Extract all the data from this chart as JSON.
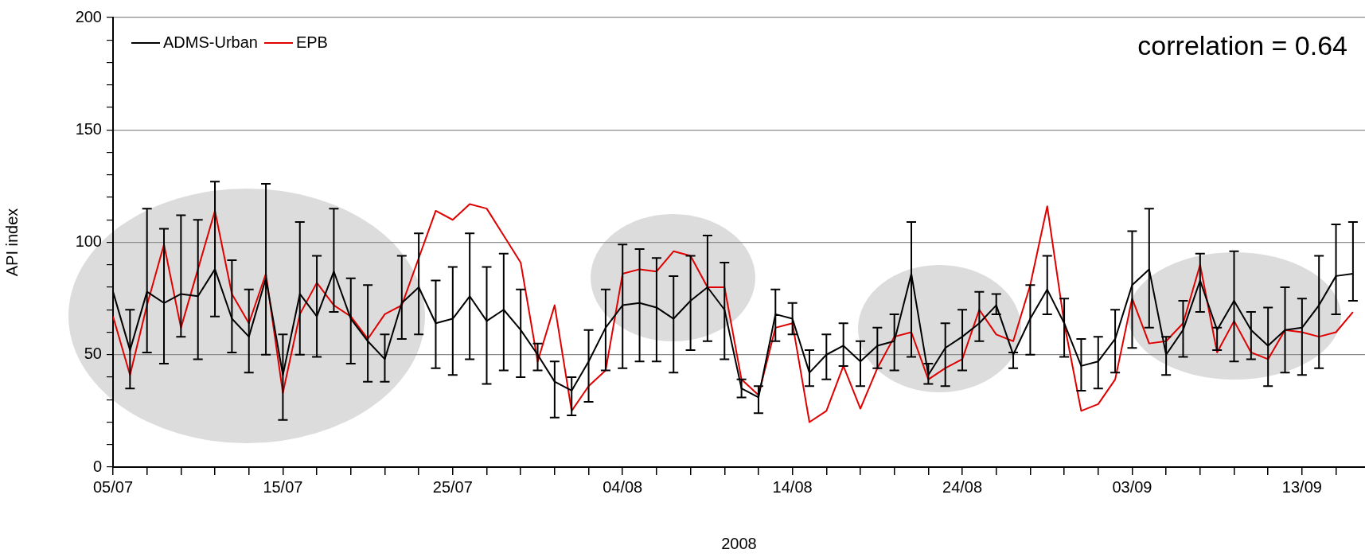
{
  "chart_data": {
    "type": "line",
    "xlabel": "2008",
    "ylabel": "API index",
    "annotations": [
      "correlation = 0.64"
    ],
    "x": [
      "2008-07-05",
      "2008-07-06",
      "2008-07-07",
      "2008-07-08",
      "2008-07-09",
      "2008-07-10",
      "2008-07-11",
      "2008-07-12",
      "2008-07-13",
      "2008-07-14",
      "2008-07-15",
      "2008-07-16",
      "2008-07-17",
      "2008-07-18",
      "2008-07-19",
      "2008-07-20",
      "2008-07-21",
      "2008-07-22",
      "2008-07-23",
      "2008-07-24",
      "2008-07-25",
      "2008-07-26",
      "2008-07-27",
      "2008-07-28",
      "2008-07-29",
      "2008-07-30",
      "2008-07-31",
      "2008-08-01",
      "2008-08-02",
      "2008-08-03",
      "2008-08-04",
      "2008-08-05",
      "2008-08-06",
      "2008-08-07",
      "2008-08-08",
      "2008-08-09",
      "2008-08-10",
      "2008-08-11",
      "2008-08-12",
      "2008-08-13",
      "2008-08-14",
      "2008-08-15",
      "2008-08-16",
      "2008-08-17",
      "2008-08-18",
      "2008-08-19",
      "2008-08-20",
      "2008-08-21",
      "2008-08-22",
      "2008-08-23",
      "2008-08-24",
      "2008-08-25",
      "2008-08-26",
      "2008-08-27",
      "2008-08-28",
      "2008-08-29",
      "2008-08-30",
      "2008-08-31",
      "2008-09-01",
      "2008-09-02",
      "2008-09-03",
      "2008-09-04",
      "2008-09-05",
      "2008-09-06",
      "2008-09-07",
      "2008-09-08",
      "2008-09-09",
      "2008-09-10",
      "2008-09-11",
      "2008-09-12",
      "2008-09-13",
      "2008-09-14",
      "2008-09-15",
      "2008-09-16"
    ],
    "series": [
      {
        "name": "ADMS-Urban",
        "color": "#000000",
        "values": [
          78,
          52,
          78,
          73,
          77,
          76,
          88,
          66,
          58,
          84,
          41,
          77,
          67,
          87,
          66,
          56,
          48,
          73,
          80,
          64,
          66,
          76,
          65,
          70,
          61,
          50,
          38,
          34,
          47,
          62,
          72,
          73,
          71,
          66,
          74,
          80,
          70,
          35,
          31,
          68,
          66,
          42,
          50,
          54,
          47,
          54,
          56,
          86,
          41,
          53,
          58,
          64,
          72,
          50,
          66,
          79,
          64,
          45,
          47,
          57,
          81,
          88,
          50,
          61,
          83,
          61,
          74,
          61,
          54,
          61,
          62,
          72,
          85,
          86
        ],
        "errors": [
          null,
          [
            35,
            70
          ],
          [
            51,
            115
          ],
          [
            46,
            106
          ],
          [
            58,
            112
          ],
          [
            48,
            110
          ],
          [
            67,
            127
          ],
          [
            51,
            92
          ],
          [
            42,
            79
          ],
          [
            50,
            126
          ],
          [
            21,
            59
          ],
          [
            50,
            109
          ],
          [
            49,
            94
          ],
          [
            69,
            115
          ],
          [
            46,
            84
          ],
          [
            38,
            81
          ],
          [
            38,
            59
          ],
          [
            57,
            94
          ],
          [
            59,
            104
          ],
          [
            44,
            83
          ],
          [
            41,
            89
          ],
          [
            48,
            104
          ],
          [
            37,
            89
          ],
          [
            43,
            95
          ],
          [
            40,
            79
          ],
          [
            43,
            55
          ],
          [
            22,
            47
          ],
          [
            23,
            40
          ],
          [
            29,
            61
          ],
          [
            43,
            79
          ],
          [
            44,
            99
          ],
          [
            47,
            97
          ],
          [
            47,
            93
          ],
          [
            42,
            85
          ],
          [
            52,
            94
          ],
          [
            56,
            103
          ],
          [
            48,
            91
          ],
          [
            31,
            39
          ],
          [
            24,
            36
          ],
          [
            56,
            79
          ],
          [
            59,
            73
          ],
          [
            36,
            52
          ],
          [
            39,
            59
          ],
          [
            45,
            64
          ],
          [
            36,
            56
          ],
          [
            44,
            62
          ],
          [
            43,
            68
          ],
          [
            49,
            109
          ],
          [
            37,
            46
          ],
          [
            36,
            64
          ],
          [
            43,
            70
          ],
          [
            56,
            78
          ],
          [
            68,
            77
          ],
          [
            44,
            51
          ],
          [
            50,
            81
          ],
          [
            68,
            94
          ],
          [
            49,
            75
          ],
          [
            34,
            57
          ],
          [
            35,
            58
          ],
          [
            42,
            70
          ],
          [
            53,
            105
          ],
          [
            62,
            115
          ],
          [
            41,
            58
          ],
          [
            49,
            74
          ],
          [
            69,
            95
          ],
          [
            52,
            62
          ],
          [
            47,
            96
          ],
          [
            48,
            69
          ],
          [
            36,
            71
          ],
          [
            42,
            80
          ],
          [
            41,
            75
          ],
          [
            44,
            94
          ],
          [
            68,
            108
          ],
          [
            74,
            109
          ]
        ]
      },
      {
        "name": "EPB",
        "color": "#e00000",
        "values": [
          67,
          41,
          72,
          99,
          62,
          88,
          114,
          77,
          64,
          86,
          33,
          68,
          82,
          72,
          67,
          57,
          68,
          72,
          93,
          114,
          110,
          117,
          115,
          103,
          91,
          47,
          72,
          25,
          36,
          43,
          86,
          88,
          87,
          96,
          94,
          80,
          80,
          39,
          32,
          62,
          64,
          20,
          25,
          45,
          26,
          44,
          58,
          60,
          39,
          44,
          48,
          70,
          59,
          56,
          81,
          116,
          64,
          25,
          28,
          39,
          75,
          55,
          56,
          64,
          90,
          51,
          65,
          51,
          48,
          61,
          60,
          58,
          60,
          69
        ]
      }
    ],
    "xlim": [
      "2008-07-05",
      "2008-09-16T17:00"
    ],
    "xticks": [
      {
        "value": "2008-07-05",
        "label": "05/07"
      },
      {
        "value": "2008-07-07",
        "label": null
      },
      {
        "value": "2008-07-09",
        "label": null
      },
      {
        "value": "2008-07-11",
        "label": null
      },
      {
        "value": "2008-07-13",
        "label": null
      },
      {
        "value": "2008-07-15",
        "label": "15/07"
      },
      {
        "value": "2008-07-17",
        "label": null
      },
      {
        "value": "2008-07-19",
        "label": null
      },
      {
        "value": "2008-07-21",
        "label": null
      },
      {
        "value": "2008-07-23",
        "label": null
      },
      {
        "value": "2008-07-25",
        "label": "25/07"
      },
      {
        "value": "2008-07-27",
        "label": null
      },
      {
        "value": "2008-07-29",
        "label": null
      },
      {
        "value": "2008-07-31",
        "label": null
      },
      {
        "value": "2008-08-02",
        "label": null
      },
      {
        "value": "2008-08-04",
        "label": "04/08"
      },
      {
        "value": "2008-08-06",
        "label": null
      },
      {
        "value": "2008-08-08",
        "label": null
      },
      {
        "value": "2008-08-10",
        "label": null
      },
      {
        "value": "2008-08-12",
        "label": null
      },
      {
        "value": "2008-08-14",
        "label": "14/08"
      },
      {
        "value": "2008-08-16",
        "label": null
      },
      {
        "value": "2008-08-18",
        "label": null
      },
      {
        "value": "2008-08-20",
        "label": null
      },
      {
        "value": "2008-08-22",
        "label": null
      },
      {
        "value": "2008-08-24",
        "label": "24/08"
      },
      {
        "value": "2008-08-26",
        "label": null
      },
      {
        "value": "2008-08-28",
        "label": null
      },
      {
        "value": "2008-08-30",
        "label": null
      },
      {
        "value": "2008-09-01",
        "label": null
      },
      {
        "value": "2008-09-03",
        "label": "03/09"
      },
      {
        "value": "2008-09-05",
        "label": null
      },
      {
        "value": "2008-09-07",
        "label": null
      },
      {
        "value": "2008-09-09",
        "label": null
      },
      {
        "value": "2008-09-11",
        "label": null
      },
      {
        "value": "2008-09-13",
        "label": "13/09"
      },
      {
        "value": "2008-09-15",
        "label": null
      }
    ],
    "ylim": [
      0,
      200
    ],
    "yticks": [
      0,
      {
        "value": 10,
        "label": null
      },
      {
        "value": 20,
        "label": null
      },
      {
        "value": 30,
        "label": null
      },
      {
        "value": 40,
        "label": null
      },
      50,
      {
        "value": 60,
        "label": null
      },
      {
        "value": 70,
        "label": null
      },
      {
        "value": 80,
        "label": null
      },
      {
        "value": 90,
        "label": null
      },
      100,
      {
        "value": 110,
        "label": null
      },
      {
        "value": 120,
        "label": null
      },
      {
        "value": 130,
        "label": null
      },
      {
        "value": 140,
        "label": null
      },
      150,
      {
        "value": 160,
        "label": null
      },
      {
        "value": 170,
        "label": null
      },
      {
        "value": 180,
        "label": null
      },
      {
        "value": 190,
        "label": null
      },
      200
    ],
    "grid": "y",
    "legend": "top left"
  }
}
